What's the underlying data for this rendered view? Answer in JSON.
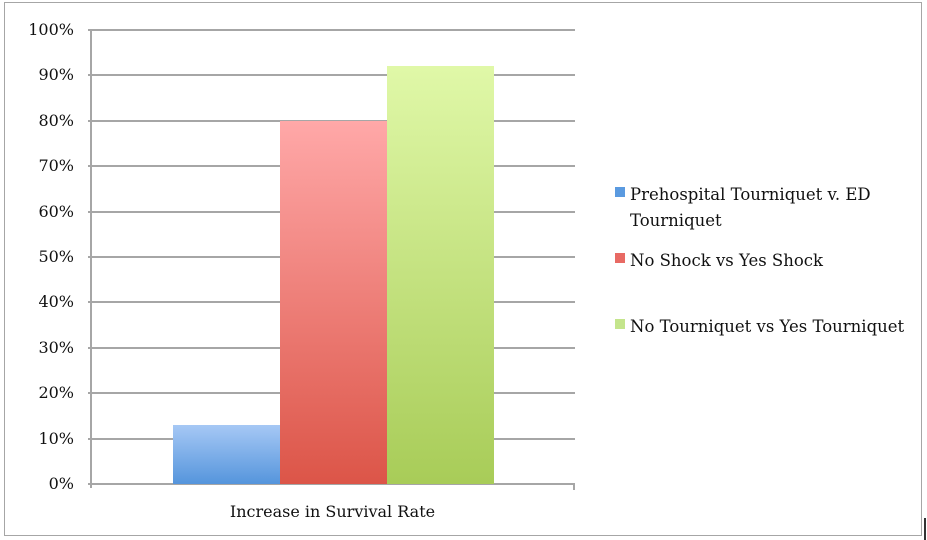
{
  "chart_data": {
    "type": "bar",
    "title": "",
    "xlabel": "Increase in Survival Rate",
    "ylabel": "",
    "categories": [
      "Increase in Survival Rate"
    ],
    "series": [
      {
        "name": "Prehospital Tourniquet v. ED Tourniquet",
        "values": [
          13
        ],
        "color_top": "#a6c8f5",
        "color_bottom": "#5595dc"
      },
      {
        "name": "No Shock vs Yes Shock",
        "values": [
          80
        ],
        "color_top": "#ffa8a8",
        "color_bottom": "#dc5548"
      },
      {
        "name": "No Tourniquet vs Yes Tourniquet",
        "values": [
          92
        ],
        "color_top": "#e0f8a8",
        "color_bottom": "#a8cc58"
      }
    ],
    "ylim": [
      0,
      100
    ],
    "yticks": [
      "100%",
      "90%",
      "80%",
      "70%",
      "60%",
      "50%",
      "40%",
      "30%",
      "20%",
      "10%",
      "0%"
    ],
    "grid": true,
    "legend_position": "right"
  },
  "legend": {
    "items": [
      {
        "label": "Prehospital Tourniquet v. ED Tourniquet",
        "color": "#5a9ae0"
      },
      {
        "label": "No Shock vs Yes Shock",
        "color": "#e86a64"
      },
      {
        "label": "No Tourniquet vs Yes Tourniquet",
        "color": "#c4e58c"
      }
    ]
  }
}
